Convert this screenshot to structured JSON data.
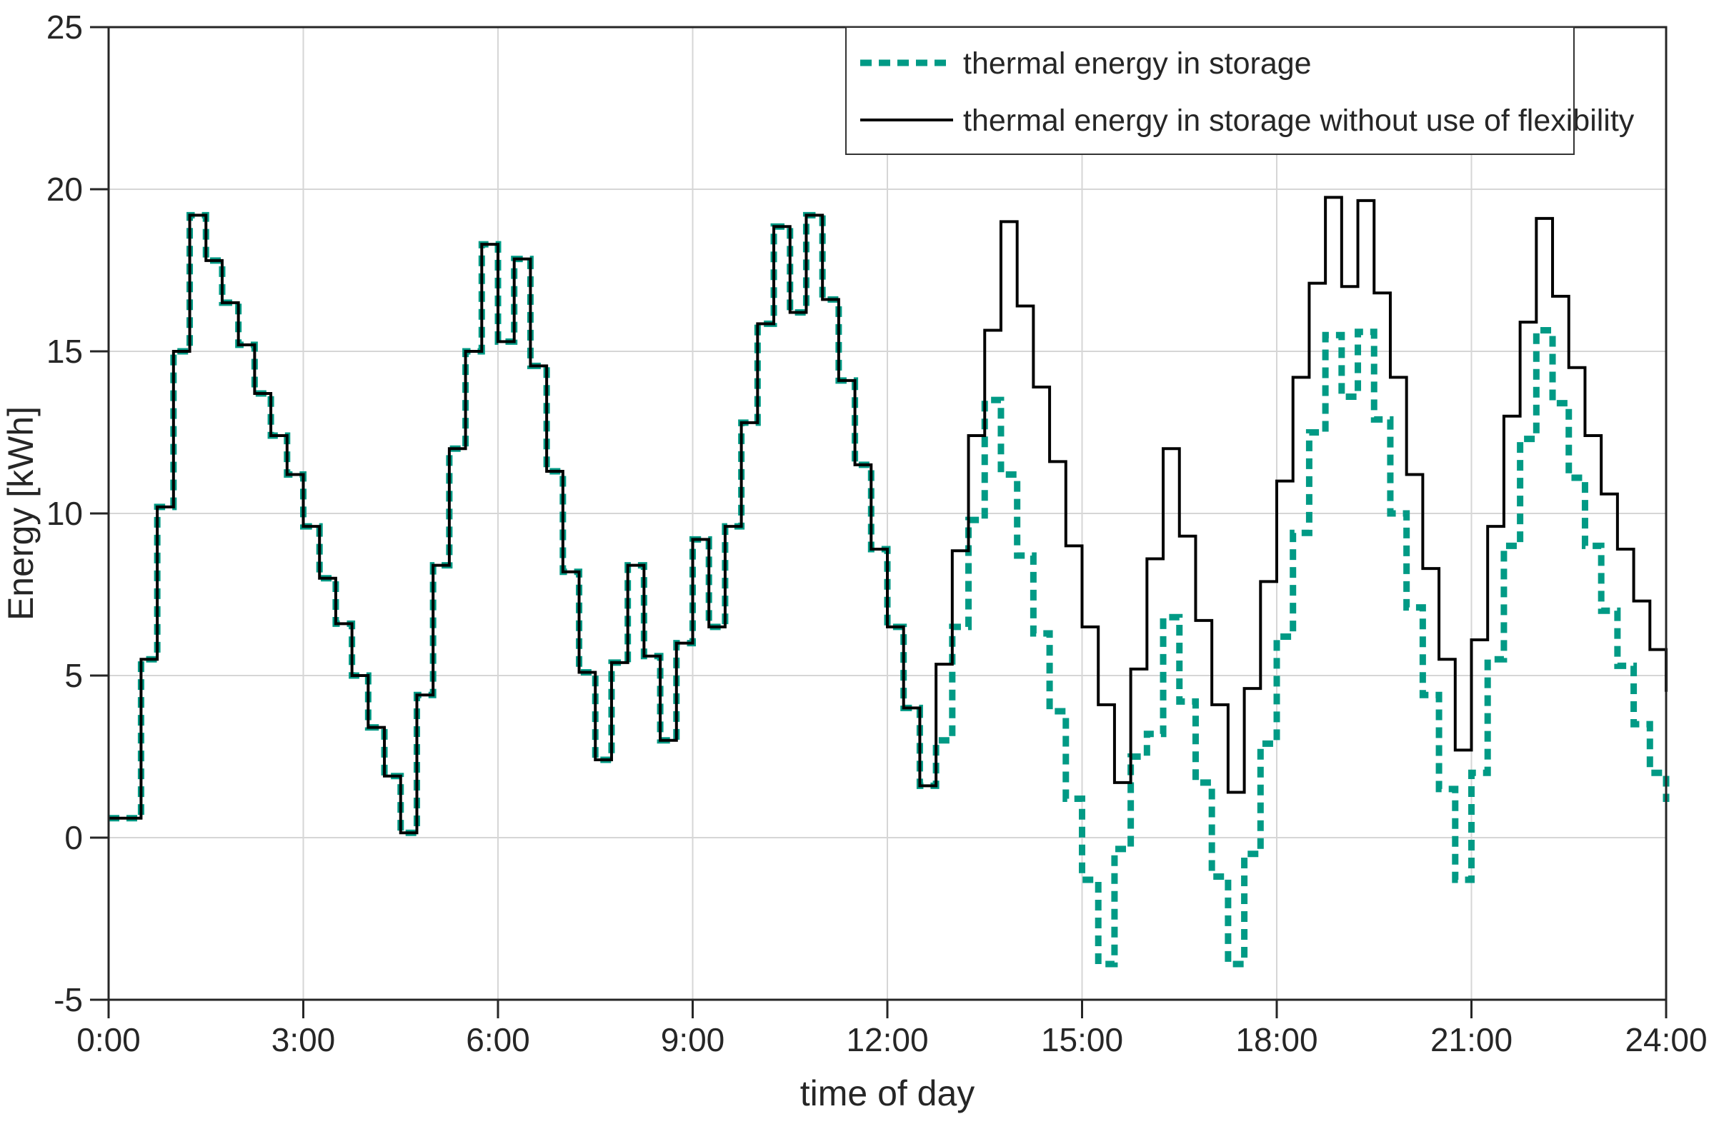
{
  "figure": {
    "background": "#ffffff"
  },
  "chart_data": {
    "type": "line",
    "step": true,
    "interval_minutes": 15,
    "title": "",
    "xlabel": "time of day",
    "ylabel": "Energy [kWh]",
    "xlim": [
      0,
      24
    ],
    "ylim": [
      -5,
      25
    ],
    "grid": true,
    "x_ticks": [
      {
        "hour": 0,
        "label": "0:00"
      },
      {
        "hour": 3,
        "label": "3:00"
      },
      {
        "hour": 6,
        "label": "6:00"
      },
      {
        "hour": 9,
        "label": "9:00"
      },
      {
        "hour": 12,
        "label": "12:00"
      },
      {
        "hour": 15,
        "label": "15:00"
      },
      {
        "hour": 18,
        "label": "18:00"
      },
      {
        "hour": 21,
        "label": "21:00"
      },
      {
        "hour": 24,
        "label": "24:00"
      }
    ],
    "y_ticks": [
      -5,
      0,
      5,
      10,
      15,
      20,
      25
    ],
    "legend": {
      "position": "top-right",
      "border": true
    },
    "series": [
      {
        "name": "thermal energy in storage",
        "color": "#009a85",
        "style": "dashed",
        "line_width": 9,
        "values": [
          0.6,
          0.6,
          5.5,
          10.2,
          15.0,
          19.2,
          17.8,
          16.5,
          15.2,
          13.7,
          12.4,
          11.2,
          9.6,
          8.0,
          6.6,
          5.0,
          3.4,
          1.9,
          0.15,
          4.4,
          8.4,
          12.0,
          15.0,
          18.3,
          15.3,
          17.85,
          14.55,
          11.3,
          8.2,
          5.1,
          2.4,
          5.4,
          8.4,
          5.6,
          3.0,
          6.0,
          9.2,
          6.5,
          9.6,
          12.8,
          15.85,
          18.85,
          16.2,
          19.2,
          16.6,
          14.1,
          11.5,
          8.9,
          6.5,
          4.0,
          1.6,
          3.0,
          6.5,
          9.8,
          13.5,
          11.2,
          8.7,
          6.3,
          3.9,
          1.2,
          -1.3,
          -3.9,
          -0.35,
          2.5,
          3.2,
          6.8,
          4.2,
          1.7,
          -1.2,
          -3.9,
          -0.5,
          2.9,
          6.2,
          9.4,
          12.5,
          15.5,
          13.6,
          15.6,
          12.9,
          10.0,
          7.1,
          4.4,
          1.5,
          -1.3,
          2.0,
          5.5,
          9.0,
          12.3,
          15.65,
          13.4,
          11.1,
          9.0,
          7.0,
          5.3,
          3.5,
          2.0
        ],
        "end_value": 1.1
      },
      {
        "name": "thermal energy in storage without use of flexibility",
        "color": "#000000",
        "style": "solid",
        "line_width": 4,
        "values": [
          0.6,
          0.6,
          5.5,
          10.2,
          15.0,
          19.2,
          17.8,
          16.5,
          15.2,
          13.7,
          12.4,
          11.2,
          9.6,
          8.0,
          6.6,
          5.0,
          3.4,
          1.9,
          0.15,
          4.4,
          8.4,
          12.0,
          15.0,
          18.3,
          15.3,
          17.85,
          14.55,
          11.3,
          8.2,
          5.1,
          2.4,
          5.4,
          8.4,
          5.6,
          3.0,
          6.0,
          9.2,
          6.5,
          9.6,
          12.8,
          15.85,
          18.85,
          16.2,
          19.2,
          16.6,
          14.1,
          11.5,
          8.9,
          6.5,
          4.0,
          1.6,
          5.35,
          8.85,
          12.4,
          15.65,
          19.0,
          16.4,
          13.9,
          11.6,
          9.0,
          6.5,
          4.1,
          1.7,
          5.2,
          8.6,
          12.0,
          9.3,
          6.7,
          4.1,
          1.4,
          4.6,
          7.9,
          11.0,
          14.2,
          17.1,
          19.75,
          17.0,
          19.65,
          16.8,
          14.2,
          11.2,
          8.3,
          5.5,
          2.7,
          6.1,
          9.6,
          13.0,
          15.9,
          19.1,
          16.7,
          14.5,
          12.4,
          10.6,
          8.9,
          7.3,
          5.8
        ],
        "end_value": 4.5
      }
    ],
    "style_hints": {
      "grid_color": "#d6d6d6",
      "axis_color": "#262626",
      "background": "#ffffff"
    }
  }
}
